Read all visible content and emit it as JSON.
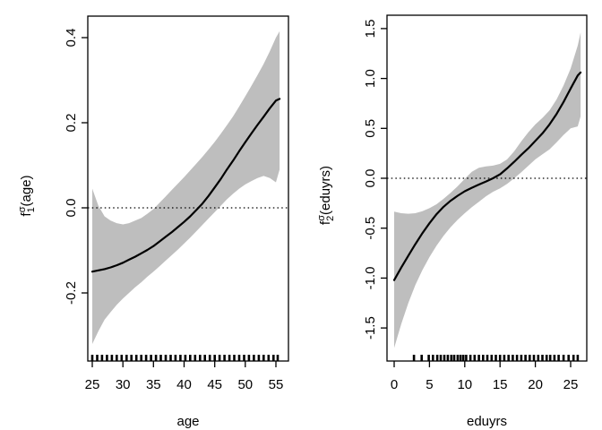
{
  "figure": {
    "background": "#ffffff",
    "title": ""
  },
  "chart_data": [
    {
      "id": "age-effect",
      "type": "line",
      "title": "",
      "xlabel": "age",
      "ylabel": {
        "pre": "f",
        "sub": "1",
        "sup": "σ",
        "post": "(age)"
      },
      "xlim": [
        24.27,
        57.05
      ],
      "ylim": [
        -0.36,
        0.4505
      ],
      "xticks": [
        25,
        30,
        35,
        40,
        45,
        50,
        55
      ],
      "xtick_labels": [
        "25",
        "30",
        "35",
        "40",
        "45",
        "50",
        "55"
      ],
      "yticks": [
        -0.2,
        0.0,
        0.2,
        0.4
      ],
      "ytick_labels": [
        "-0.2",
        "0.0",
        "0.2",
        "0.4"
      ],
      "zero_line": 0.0,
      "grid": false,
      "legend": null,
      "colors": {
        "band": "#bebebe",
        "line": "#000000",
        "axis": "#000000",
        "zero_line": "#000000"
      },
      "x": [
        25,
        26,
        27,
        28,
        29,
        30,
        31,
        32,
        33,
        34,
        35,
        36,
        37,
        38,
        39,
        40,
        41,
        42,
        43,
        44,
        45,
        46,
        47,
        48,
        49,
        50,
        51,
        52,
        53,
        54,
        55,
        55.6
      ],
      "series": [
        {
          "name": "estimate",
          "y": [
            -0.15,
            -0.147,
            -0.144,
            -0.14,
            -0.135,
            -0.129,
            -0.122,
            -0.115,
            -0.107,
            -0.099,
            -0.09,
            -0.079,
            -0.068,
            -0.057,
            -0.045,
            -0.033,
            -0.02,
            -0.005,
            0.01,
            0.028,
            0.048,
            0.068,
            0.09,
            0.111,
            0.133,
            0.154,
            0.175,
            0.195,
            0.214,
            0.234,
            0.252,
            0.256
          ]
        },
        {
          "name": "ci_upper",
          "y": [
            0.045,
            0.005,
            -0.02,
            -0.03,
            -0.036,
            -0.039,
            -0.036,
            -0.03,
            -0.024,
            -0.014,
            -0.003,
            0.012,
            0.027,
            0.042,
            0.057,
            0.072,
            0.088,
            0.104,
            0.12,
            0.137,
            0.155,
            0.174,
            0.194,
            0.215,
            0.238,
            0.262,
            0.287,
            0.312,
            0.338,
            0.368,
            0.4,
            0.415
          ]
        },
        {
          "name": "ci_lower",
          "y": [
            -0.32,
            -0.29,
            -0.263,
            -0.245,
            -0.228,
            -0.213,
            -0.2,
            -0.187,
            -0.175,
            -0.162,
            -0.15,
            -0.137,
            -0.124,
            -0.111,
            -0.098,
            -0.084,
            -0.07,
            -0.055,
            -0.04,
            -0.025,
            -0.01,
            0.005,
            0.02,
            0.033,
            0.045,
            0.055,
            0.063,
            0.07,
            0.075,
            0.07,
            0.06,
            0.09
          ]
        }
      ],
      "rug": [
        25,
        25.8,
        26.6,
        27.4,
        28.2,
        29,
        29.8,
        30.6,
        31.4,
        32.2,
        33,
        33.8,
        34.6,
        35.4,
        36.2,
        37,
        37.8,
        38.6,
        39.4,
        40.2,
        41,
        41.8,
        42.6,
        43.4,
        44.2,
        45,
        45.8,
        46.6,
        47.4,
        48.2,
        49,
        49.8,
        50.6,
        51.4,
        52.2,
        53,
        53.8,
        54.6,
        55.3
      ]
    },
    {
      "id": "eduyrs-effect",
      "type": "line",
      "title": "",
      "xlabel": "eduyrs",
      "ylabel": {
        "pre": "f",
        "sub": "2",
        "sup": "σ",
        "post": "(eduyrs)"
      },
      "xlim": [
        -1.015,
        27.28
      ],
      "ylim": [
        -1.831,
        1.634
      ],
      "xticks": [
        0,
        5,
        10,
        15,
        20,
        25
      ],
      "xtick_labels": [
        "0",
        "5",
        "10",
        "15",
        "20",
        "25"
      ],
      "yticks": [
        -1.5,
        -1.0,
        -0.5,
        0.0,
        0.5,
        1.0,
        1.5
      ],
      "ytick_labels": [
        "-1.5",
        "-1.0",
        "-0.5",
        "0.0",
        "0.5",
        "1.0",
        "1.5"
      ],
      "zero_line": 0.0,
      "grid": false,
      "legend": null,
      "colors": {
        "band": "#bebebe",
        "line": "#000000",
        "axis": "#000000",
        "zero_line": "#000000"
      },
      "x": [
        0,
        1,
        2,
        3,
        4,
        5,
        6,
        7,
        8,
        9,
        10,
        11,
        12,
        13,
        14,
        15,
        16,
        17,
        18,
        19,
        20,
        21,
        22,
        23,
        24,
        25,
        26,
        26.4
      ],
      "series": [
        {
          "name": "estimate",
          "y": [
            -1.02,
            -0.895,
            -0.775,
            -0.66,
            -0.55,
            -0.45,
            -0.36,
            -0.285,
            -0.225,
            -0.175,
            -0.13,
            -0.095,
            -0.063,
            -0.032,
            0.0,
            0.04,
            0.1,
            0.165,
            0.235,
            0.3,
            0.375,
            0.45,
            0.54,
            0.645,
            0.765,
            0.9,
            1.03,
            1.06
          ]
        },
        {
          "name": "ci_upper",
          "y": [
            -0.335,
            -0.35,
            -0.355,
            -0.35,
            -0.33,
            -0.3,
            -0.26,
            -0.205,
            -0.145,
            -0.08,
            -0.005,
            0.065,
            0.105,
            0.12,
            0.127,
            0.145,
            0.19,
            0.27,
            0.37,
            0.46,
            0.54,
            0.605,
            0.68,
            0.79,
            0.93,
            1.1,
            1.33,
            1.46
          ]
        },
        {
          "name": "ci_lower",
          "y": [
            -1.7,
            -1.46,
            -1.25,
            -1.07,
            -0.92,
            -0.79,
            -0.675,
            -0.575,
            -0.49,
            -0.415,
            -0.35,
            -0.29,
            -0.235,
            -0.18,
            -0.135,
            -0.1,
            -0.055,
            0.0,
            0.06,
            0.125,
            0.19,
            0.24,
            0.29,
            0.36,
            0.435,
            0.5,
            0.52,
            0.62
          ]
        }
      ],
      "rug": [
        2.8,
        3.9,
        4.9,
        5.5,
        6.1,
        6.6,
        7.1,
        7.6,
        8.1,
        8.5,
        9.0,
        9.4,
        9.8,
        10.2,
        10.8,
        11.4,
        12.0,
        12.6,
        13.2,
        13.8,
        14.4,
        15.0,
        15.6,
        16.2,
        16.8,
        17.4,
        18.0,
        18.6,
        19.2,
        19.8,
        20.4,
        21.0,
        21.6,
        22.1,
        22.7,
        23.3,
        24.0,
        24.7,
        25.4,
        26.0
      ]
    }
  ]
}
